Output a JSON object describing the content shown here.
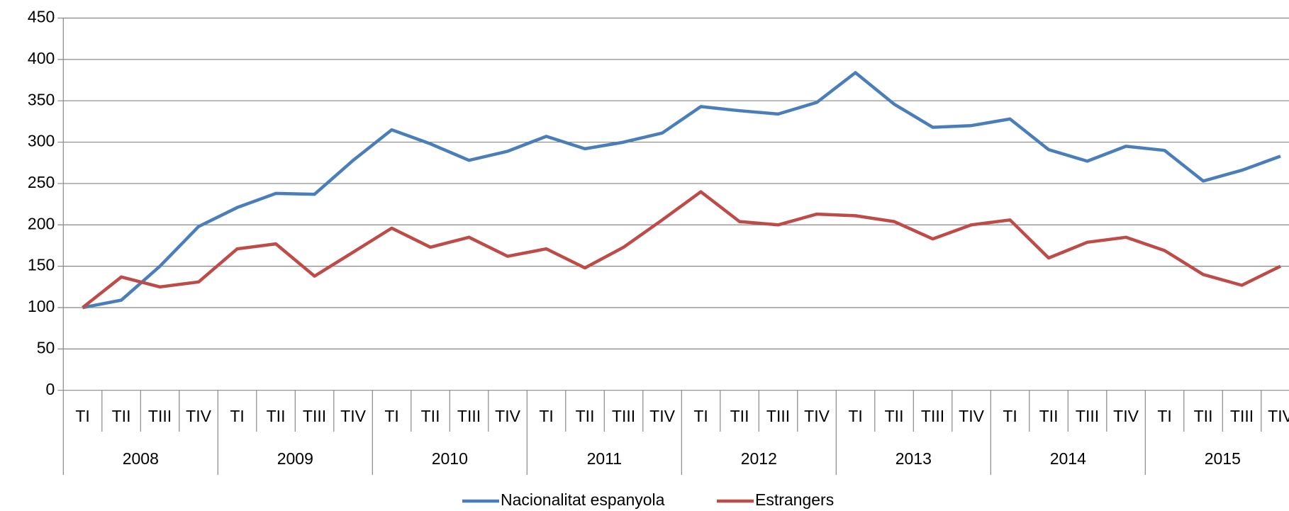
{
  "chart_data": {
    "type": "line",
    "categories": [
      "TI",
      "TII",
      "TIII",
      "TIV",
      "TI",
      "TII",
      "TIII",
      "TIV",
      "TI",
      "TII",
      "TIII",
      "TIV",
      "TI",
      "TII",
      "TIII",
      "TIV",
      "TI",
      "TII",
      "TIII",
      "TIV",
      "TI",
      "TII",
      "TIII",
      "TIV",
      "TI",
      "TII",
      "TIII",
      "TIV",
      "TI",
      "TII",
      "TIII",
      "TIV"
    ],
    "years": [
      "2008",
      "2009",
      "2010",
      "2011",
      "2012",
      "2013",
      "2014",
      "2015"
    ],
    "series": [
      {
        "name": "Nacionalitat espanyola",
        "color": "#4a7ebb",
        "values": [
          100,
          109,
          150,
          198,
          221,
          238,
          237,
          278,
          315,
          298,
          278,
          289,
          307,
          292,
          300,
          311,
          343,
          338,
          334,
          348,
          384,
          346,
          318,
          320,
          328,
          291,
          277,
          295,
          290,
          253,
          266,
          283
        ]
      },
      {
        "name": "Estrangers",
        "color": "#be4b48",
        "values": [
          100,
          137,
          125,
          131,
          171,
          177,
          138,
          167,
          196,
          173,
          185,
          162,
          171,
          148,
          173,
          206,
          240,
          204,
          200,
          213,
          211,
          204,
          183,
          200,
          206,
          160,
          179,
          185,
          169,
          140,
          127,
          150
        ]
      }
    ],
    "ylim": [
      0,
      450
    ],
    "yticks": [
      0,
      50,
      100,
      150,
      200,
      250,
      300,
      350,
      400,
      450
    ],
    "grid": true,
    "legend": "bottom"
  }
}
